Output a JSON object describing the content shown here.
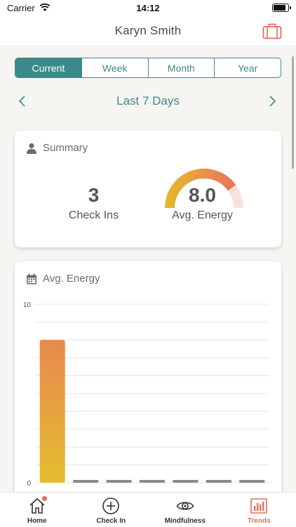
{
  "status": {
    "carrier": "Carrier",
    "time": "14:12",
    "battery_level": 0.9
  },
  "nav": {
    "title": "Karyn Smith"
  },
  "segments": [
    {
      "label": "Current",
      "active": true
    },
    {
      "label": "Week",
      "active": false
    },
    {
      "label": "Month",
      "active": false
    },
    {
      "label": "Year",
      "active": false
    }
  ],
  "period": {
    "label": "Last 7 Days"
  },
  "summary": {
    "title": "Summary",
    "check_ins_value": "3",
    "check_ins_label": "Check Ins",
    "avg_energy_value": "8.0",
    "avg_energy_label": "Avg. Energy",
    "gauge_fraction": 0.8
  },
  "energy": {
    "title": "Avg. Energy"
  },
  "chart_data": {
    "type": "bar",
    "categories": [
      "",
      "",
      "",
      "",
      "",
      "",
      ""
    ],
    "values": [
      8,
      0,
      0,
      0,
      0,
      0,
      0
    ],
    "ylim": [
      0,
      10
    ],
    "yticks": [
      "10",
      "0"
    ],
    "grid": true
  },
  "tabs": [
    {
      "label": "Home",
      "icon": "home-icon",
      "active": false,
      "badge": true
    },
    {
      "label": "Check In",
      "icon": "plus-circle-icon",
      "active": false,
      "badge": false
    },
    {
      "label": "Mindfulness",
      "icon": "eye-icon",
      "active": false,
      "badge": false
    },
    {
      "label": "Trends",
      "icon": "bar-chart-icon",
      "active": true,
      "badge": false
    }
  ],
  "colors": {
    "accent_teal": "#3b8a8a",
    "accent_coral": "#e0705a",
    "bar_top": "#e8894f",
    "bar_bottom": "#e5bd2e"
  }
}
